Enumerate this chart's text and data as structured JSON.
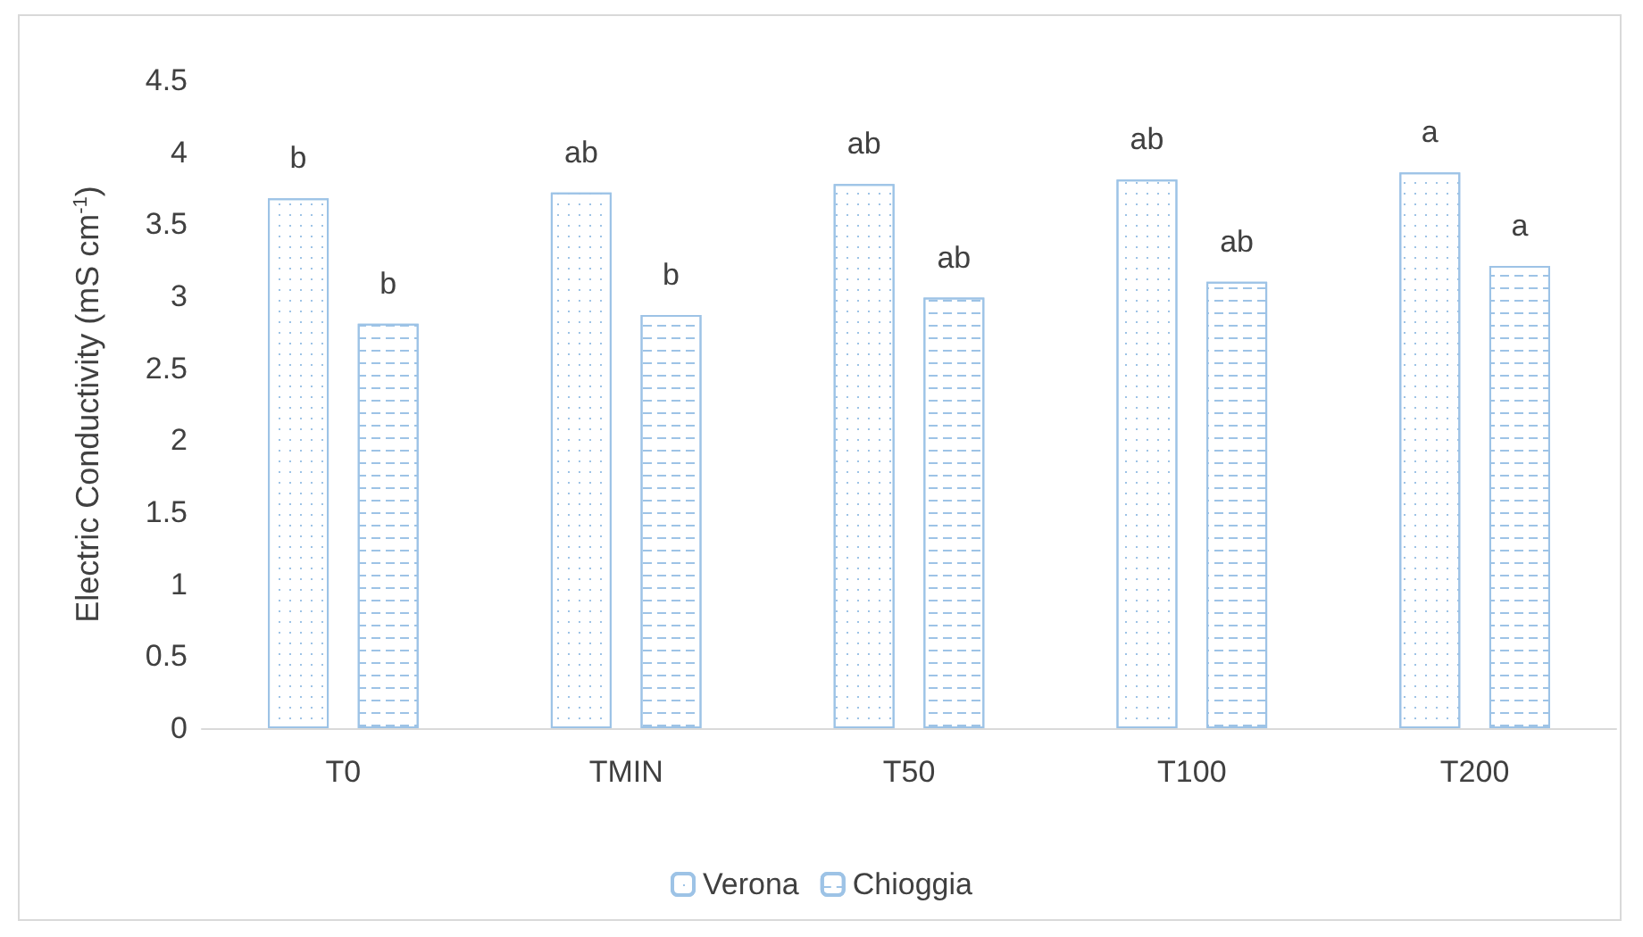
{
  "chart_data": {
    "type": "bar",
    "ylabel": "Electric Conductivity (mS cm$^{-1}$)",
    "categories": [
      "T0",
      "TMIN",
      "T50",
      "T100",
      "T200"
    ],
    "series": [
      {
        "name": "Verona",
        "color": "#9dc3e6",
        "values": [
          3.68,
          3.72,
          3.78,
          3.81,
          3.86
        ]
      },
      {
        "name": "Chioggia",
        "color": "#9dc3e6",
        "values": [
          2.81,
          2.87,
          2.99,
          3.1,
          3.21
        ]
      }
    ],
    "ylim": [
      0,
      4.5
    ],
    "yticks": [
      0,
      0.5,
      1,
      1.5,
      2,
      2.5,
      3,
      3.5,
      4,
      4.5
    ],
    "grid": false,
    "legend": "bottom",
    "annotations": [
      "b",
      "b",
      "ab",
      "b",
      "ab",
      "ab",
      "ab",
      "ab",
      "a",
      "a"
    ]
  }
}
